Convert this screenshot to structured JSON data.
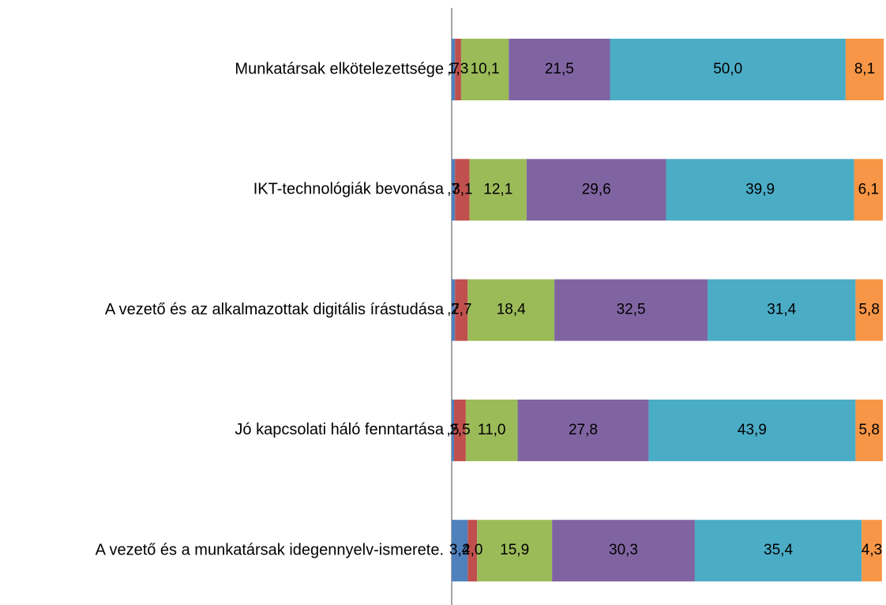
{
  "chart_data": {
    "type": "stacked-barh",
    "categories": [
      "Munkatársak elkötelezettsége",
      "IKT-technológiák bevonása",
      "A vezető és az alkalmazottak digitális írástudása",
      "Jó kapcsolati háló fenntartása",
      "A vezető és a munkatársak idegennyelv-ismerete."
    ],
    "series": [
      {
        "color": "#4f81bd",
        "values": [
          0.7,
          0.7,
          0.7,
          0.5,
          3.4
        ],
        "value_labels": [
          ",7",
          ",7",
          ",7",
          ",5",
          "3,4"
        ]
      },
      {
        "color": "#c0504d",
        "values": [
          1.3,
          3.1,
          2.7,
          2.5,
          2.0
        ],
        "value_labels": [
          "1,3",
          "3,1",
          "2,7",
          "2,5",
          "2,0"
        ]
      },
      {
        "color": "#9bbb59",
        "values": [
          10.1,
          12.1,
          18.4,
          11.0,
          15.9
        ],
        "value_labels": [
          "10,1",
          "12,1",
          "18,4",
          "11,0",
          "15,9"
        ]
      },
      {
        "color": "#8064a2",
        "values": [
          21.5,
          29.6,
          32.5,
          27.8,
          30.3
        ],
        "value_labels": [
          "21,5",
          "29,6",
          "32,5",
          "27,8",
          "30,3"
        ]
      },
      {
        "color": "#4bacc6",
        "values": [
          50.0,
          39.9,
          31.4,
          43.9,
          35.4
        ],
        "value_labels": [
          "50,0",
          "39,9",
          "31,4",
          "43,9",
          "35,4"
        ]
      },
      {
        "color": "#f79646",
        "values": [
          8.1,
          6.1,
          5.8,
          5.8,
          4.3
        ],
        "value_labels": [
          "8,1",
          "6,1",
          "5,8",
          "5,8",
          "4,3"
        ]
      }
    ],
    "xlim": [
      0,
      92
    ]
  }
}
